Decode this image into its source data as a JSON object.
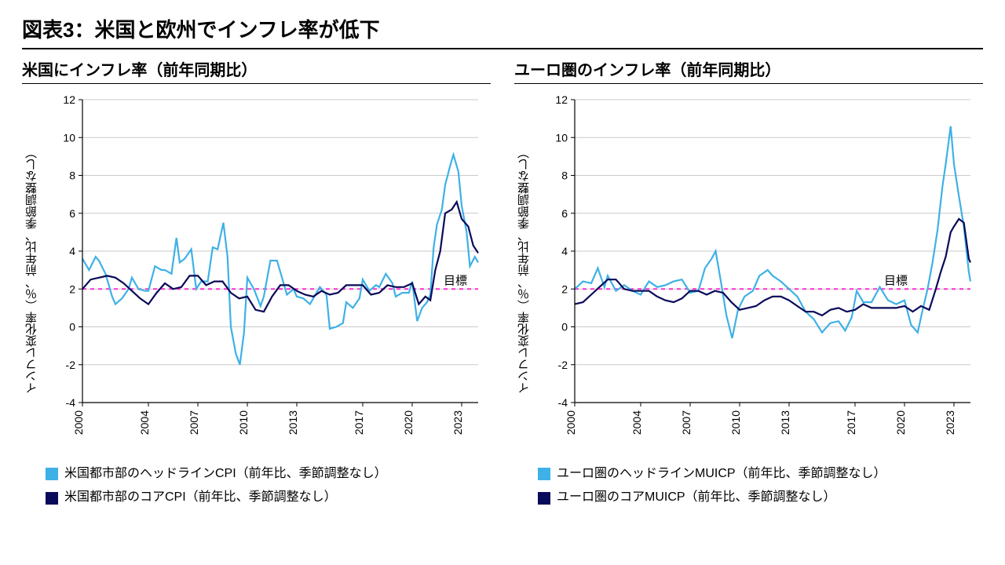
{
  "main_title": "図表3：米国と欧州でインフレ率が低下",
  "colors": {
    "headline": "#3eb1e6",
    "core": "#0a0a5a",
    "target": "#ff2fd0",
    "axis": "#000000",
    "grid": "#c9c9c9",
    "background": "#ffffff"
  },
  "ylabel_shared": "インフレ変化率（％、前年比、季節調整なし）",
  "ylim": [
    -4,
    12
  ],
  "ytick_step": 2,
  "yticks": [
    -4,
    -2,
    0,
    2,
    4,
    6,
    8,
    10,
    12
  ],
  "xlim": [
    2000,
    2024
  ],
  "xticks": [
    2000,
    2004,
    2007,
    2010,
    2013,
    2017,
    2020,
    2023
  ],
  "target_value": 2,
  "target_label": "目標",
  "line_width_headline": 2.2,
  "line_width_core": 2.2,
  "target_dash": "5 5",
  "panels": [
    {
      "key": "us",
      "subtitle": "米国にインフレ率（前年同期比）",
      "legend": [
        {
          "color_key": "headline",
          "label": "米国都市部のヘッドラインCPI（前年比、季節調整なし）"
        },
        {
          "color_key": "core",
          "label": "米国都市部のコアCPI（前年比、季節調整なし）"
        }
      ],
      "series": {
        "headline": [
          [
            2000.0,
            3.6
          ],
          [
            2000.4,
            3.0
          ],
          [
            2000.8,
            3.7
          ],
          [
            2001.0,
            3.5
          ],
          [
            2001.4,
            2.8
          ],
          [
            2001.8,
            1.6
          ],
          [
            2002.0,
            1.2
          ],
          [
            2002.4,
            1.5
          ],
          [
            2002.8,
            2.0
          ],
          [
            2003.0,
            2.6
          ],
          [
            2003.4,
            2.0
          ],
          [
            2003.8,
            1.9
          ],
          [
            2004.0,
            1.9
          ],
          [
            2004.4,
            3.2
          ],
          [
            2004.8,
            3.0
          ],
          [
            2005.0,
            3.0
          ],
          [
            2005.4,
            2.8
          ],
          [
            2005.7,
            4.7
          ],
          [
            2005.9,
            3.4
          ],
          [
            2006.2,
            3.6
          ],
          [
            2006.6,
            4.1
          ],
          [
            2006.9,
            2.0
          ],
          [
            2007.2,
            2.4
          ],
          [
            2007.6,
            2.4
          ],
          [
            2007.9,
            4.2
          ],
          [
            2008.2,
            4.1
          ],
          [
            2008.55,
            5.5
          ],
          [
            2008.8,
            3.7
          ],
          [
            2009.0,
            0.0
          ],
          [
            2009.3,
            -1.4
          ],
          [
            2009.55,
            -2.0
          ],
          [
            2009.8,
            -0.3
          ],
          [
            2010.0,
            2.6
          ],
          [
            2010.4,
            2.0
          ],
          [
            2010.8,
            1.1
          ],
          [
            2011.0,
            1.6
          ],
          [
            2011.4,
            3.5
          ],
          [
            2011.8,
            3.5
          ],
          [
            2012.0,
            2.9
          ],
          [
            2012.4,
            1.7
          ],
          [
            2012.8,
            2.0
          ],
          [
            2013.0,
            1.6
          ],
          [
            2013.4,
            1.5
          ],
          [
            2013.8,
            1.2
          ],
          [
            2014.0,
            1.5
          ],
          [
            2014.4,
            2.1
          ],
          [
            2014.8,
            1.7
          ],
          [
            2015.0,
            -0.1
          ],
          [
            2015.4,
            0.0
          ],
          [
            2015.8,
            0.2
          ],
          [
            2016.0,
            1.3
          ],
          [
            2016.4,
            1.0
          ],
          [
            2016.8,
            1.5
          ],
          [
            2017.0,
            2.5
          ],
          [
            2017.4,
            1.9
          ],
          [
            2017.8,
            2.2
          ],
          [
            2018.0,
            2.1
          ],
          [
            2018.4,
            2.8
          ],
          [
            2018.8,
            2.3
          ],
          [
            2019.0,
            1.6
          ],
          [
            2019.4,
            1.8
          ],
          [
            2019.8,
            1.8
          ],
          [
            2020.0,
            2.4
          ],
          [
            2020.3,
            0.3
          ],
          [
            2020.6,
            1.0
          ],
          [
            2020.9,
            1.3
          ],
          [
            2021.1,
            1.7
          ],
          [
            2021.3,
            4.2
          ],
          [
            2021.5,
            5.4
          ],
          [
            2021.8,
            6.2
          ],
          [
            2022.0,
            7.5
          ],
          [
            2022.3,
            8.5
          ],
          [
            2022.5,
            9.1
          ],
          [
            2022.8,
            8.2
          ],
          [
            2023.0,
            6.4
          ],
          [
            2023.3,
            5.0
          ],
          [
            2023.5,
            3.2
          ],
          [
            2023.8,
            3.7
          ],
          [
            2024.0,
            3.4
          ]
        ],
        "core": [
          [
            2000.0,
            2.0
          ],
          [
            2000.5,
            2.5
          ],
          [
            2001.0,
            2.6
          ],
          [
            2001.5,
            2.7
          ],
          [
            2002.0,
            2.6
          ],
          [
            2002.5,
            2.3
          ],
          [
            2003.0,
            1.9
          ],
          [
            2003.5,
            1.5
          ],
          [
            2004.0,
            1.2
          ],
          [
            2004.5,
            1.8
          ],
          [
            2005.0,
            2.3
          ],
          [
            2005.5,
            2.0
          ],
          [
            2006.0,
            2.1
          ],
          [
            2006.5,
            2.7
          ],
          [
            2007.0,
            2.7
          ],
          [
            2007.5,
            2.2
          ],
          [
            2008.0,
            2.4
          ],
          [
            2008.5,
            2.4
          ],
          [
            2009.0,
            1.8
          ],
          [
            2009.5,
            1.5
          ],
          [
            2010.0,
            1.6
          ],
          [
            2010.5,
            0.9
          ],
          [
            2011.0,
            0.8
          ],
          [
            2011.5,
            1.6
          ],
          [
            2012.0,
            2.2
          ],
          [
            2012.5,
            2.2
          ],
          [
            2013.0,
            1.9
          ],
          [
            2013.5,
            1.7
          ],
          [
            2014.0,
            1.6
          ],
          [
            2014.5,
            1.9
          ],
          [
            2015.0,
            1.7
          ],
          [
            2015.5,
            1.8
          ],
          [
            2016.0,
            2.2
          ],
          [
            2016.5,
            2.2
          ],
          [
            2017.0,
            2.2
          ],
          [
            2017.5,
            1.7
          ],
          [
            2018.0,
            1.8
          ],
          [
            2018.5,
            2.2
          ],
          [
            2019.0,
            2.1
          ],
          [
            2019.5,
            2.1
          ],
          [
            2020.0,
            2.3
          ],
          [
            2020.4,
            1.2
          ],
          [
            2020.8,
            1.6
          ],
          [
            2021.1,
            1.4
          ],
          [
            2021.4,
            3.0
          ],
          [
            2021.7,
            4.0
          ],
          [
            2022.0,
            6.0
          ],
          [
            2022.4,
            6.2
          ],
          [
            2022.7,
            6.6
          ],
          [
            2023.0,
            5.7
          ],
          [
            2023.4,
            5.3
          ],
          [
            2023.7,
            4.3
          ],
          [
            2024.0,
            3.9
          ]
        ]
      }
    },
    {
      "key": "eu",
      "subtitle": "ユーロ圏のインフレ率（前年同期比）",
      "legend": [
        {
          "color_key": "headline",
          "label": "ユーロ圏のヘッドラインMUICP（前年比、季節調整なし）"
        },
        {
          "color_key": "core",
          "label": "ユーロ圏のコアMUICP（前年比、季節調整なし）"
        }
      ],
      "series": {
        "headline": [
          [
            2000.0,
            2.0
          ],
          [
            2000.5,
            2.4
          ],
          [
            2001.0,
            2.3
          ],
          [
            2001.4,
            3.1
          ],
          [
            2001.8,
            2.1
          ],
          [
            2002.0,
            2.7
          ],
          [
            2002.5,
            1.9
          ],
          [
            2003.0,
            2.2
          ],
          [
            2003.5,
            1.9
          ],
          [
            2004.0,
            1.7
          ],
          [
            2004.5,
            2.4
          ],
          [
            2005.0,
            2.1
          ],
          [
            2005.5,
            2.2
          ],
          [
            2006.0,
            2.4
          ],
          [
            2006.5,
            2.5
          ],
          [
            2007.0,
            1.8
          ],
          [
            2007.5,
            1.9
          ],
          [
            2007.9,
            3.1
          ],
          [
            2008.3,
            3.6
          ],
          [
            2008.55,
            4.0
          ],
          [
            2008.9,
            2.2
          ],
          [
            2009.2,
            0.6
          ],
          [
            2009.55,
            -0.6
          ],
          [
            2009.9,
            0.9
          ],
          [
            2010.3,
            1.6
          ],
          [
            2010.8,
            1.9
          ],
          [
            2011.2,
            2.7
          ],
          [
            2011.7,
            3.0
          ],
          [
            2012.0,
            2.7
          ],
          [
            2012.5,
            2.4
          ],
          [
            2013.0,
            2.0
          ],
          [
            2013.5,
            1.6
          ],
          [
            2014.0,
            0.8
          ],
          [
            2014.5,
            0.4
          ],
          [
            2015.0,
            -0.3
          ],
          [
            2015.5,
            0.2
          ],
          [
            2016.0,
            0.3
          ],
          [
            2016.4,
            -0.2
          ],
          [
            2016.8,
            0.5
          ],
          [
            2017.1,
            1.9
          ],
          [
            2017.5,
            1.3
          ],
          [
            2018.0,
            1.3
          ],
          [
            2018.5,
            2.1
          ],
          [
            2019.0,
            1.4
          ],
          [
            2019.5,
            1.2
          ],
          [
            2020.0,
            1.4
          ],
          [
            2020.4,
            0.1
          ],
          [
            2020.8,
            -0.3
          ],
          [
            2021.1,
            0.9
          ],
          [
            2021.4,
            2.0
          ],
          [
            2021.7,
            3.4
          ],
          [
            2022.0,
            5.1
          ],
          [
            2022.3,
            7.4
          ],
          [
            2022.5,
            8.6
          ],
          [
            2022.8,
            10.6
          ],
          [
            2023.0,
            8.6
          ],
          [
            2023.3,
            6.9
          ],
          [
            2023.6,
            5.3
          ],
          [
            2023.9,
            2.9
          ],
          [
            2024.0,
            2.4
          ]
        ],
        "core": [
          [
            2000.0,
            1.2
          ],
          [
            2000.5,
            1.3
          ],
          [
            2001.0,
            1.7
          ],
          [
            2001.5,
            2.1
          ],
          [
            2002.0,
            2.5
          ],
          [
            2002.5,
            2.5
          ],
          [
            2003.0,
            2.0
          ],
          [
            2003.5,
            1.9
          ],
          [
            2004.0,
            1.9
          ],
          [
            2004.5,
            1.9
          ],
          [
            2005.0,
            1.6
          ],
          [
            2005.5,
            1.4
          ],
          [
            2006.0,
            1.3
          ],
          [
            2006.5,
            1.5
          ],
          [
            2007.0,
            1.9
          ],
          [
            2007.5,
            1.9
          ],
          [
            2008.0,
            1.7
          ],
          [
            2008.5,
            1.9
          ],
          [
            2009.0,
            1.8
          ],
          [
            2009.5,
            1.3
          ],
          [
            2010.0,
            0.9
          ],
          [
            2010.5,
            1.0
          ],
          [
            2011.0,
            1.1
          ],
          [
            2011.5,
            1.4
          ],
          [
            2012.0,
            1.6
          ],
          [
            2012.5,
            1.6
          ],
          [
            2013.0,
            1.4
          ],
          [
            2013.5,
            1.1
          ],
          [
            2014.0,
            0.8
          ],
          [
            2014.5,
            0.8
          ],
          [
            2015.0,
            0.6
          ],
          [
            2015.5,
            0.9
          ],
          [
            2016.0,
            1.0
          ],
          [
            2016.5,
            0.8
          ],
          [
            2017.0,
            0.9
          ],
          [
            2017.5,
            1.2
          ],
          [
            2018.0,
            1.0
          ],
          [
            2018.5,
            1.0
          ],
          [
            2019.0,
            1.0
          ],
          [
            2019.5,
            1.0
          ],
          [
            2020.0,
            1.1
          ],
          [
            2020.5,
            0.8
          ],
          [
            2021.0,
            1.1
          ],
          [
            2021.5,
            0.9
          ],
          [
            2021.9,
            2.0
          ],
          [
            2022.2,
            2.9
          ],
          [
            2022.5,
            3.7
          ],
          [
            2022.8,
            5.0
          ],
          [
            2023.0,
            5.3
          ],
          [
            2023.3,
            5.7
          ],
          [
            2023.6,
            5.5
          ],
          [
            2023.9,
            3.6
          ],
          [
            2024.0,
            3.4
          ]
        ]
      }
    }
  ]
}
